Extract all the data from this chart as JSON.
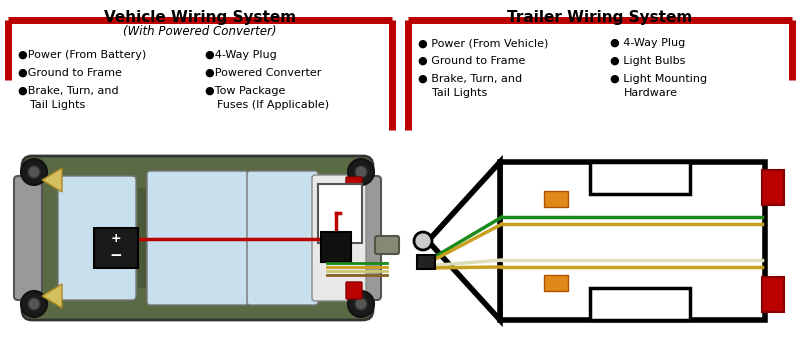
{
  "bg_color": "#ffffff",
  "left_title": "Vehicle Wiring System",
  "right_title": "Trailer Wiring System",
  "left_subtitle": "(With Powered Converter)",
  "left_bullets_col1": [
    "Power (From Battery)",
    "Ground to Frame",
    "Brake, Turn, and",
    "Tail Lights"
  ],
  "left_bullets_col2": [
    "4-Way Plug",
    "Powered Converter",
    "Tow Package",
    "Fuses (If Applicable)"
  ],
  "right_bullets_col1": [
    "Power (From Vehicle)",
    "Ground to Frame",
    "Brake, Turn, and",
    "Tail Lights"
  ],
  "right_bullets_col2": [
    "4-Way Plug",
    "Light Bulbs",
    "Light Mounting",
    "Hardware"
  ],
  "red_color": "#bb0000",
  "olive_dark": "#4a5a38",
  "olive_mid": "#5a6a45",
  "light_blue": "#c8e0ee",
  "yellow_wire": "#c8a020",
  "green_wire": "#1a8a1a",
  "white_wire": "#ddddbb",
  "brown_wire": "#8a6020"
}
